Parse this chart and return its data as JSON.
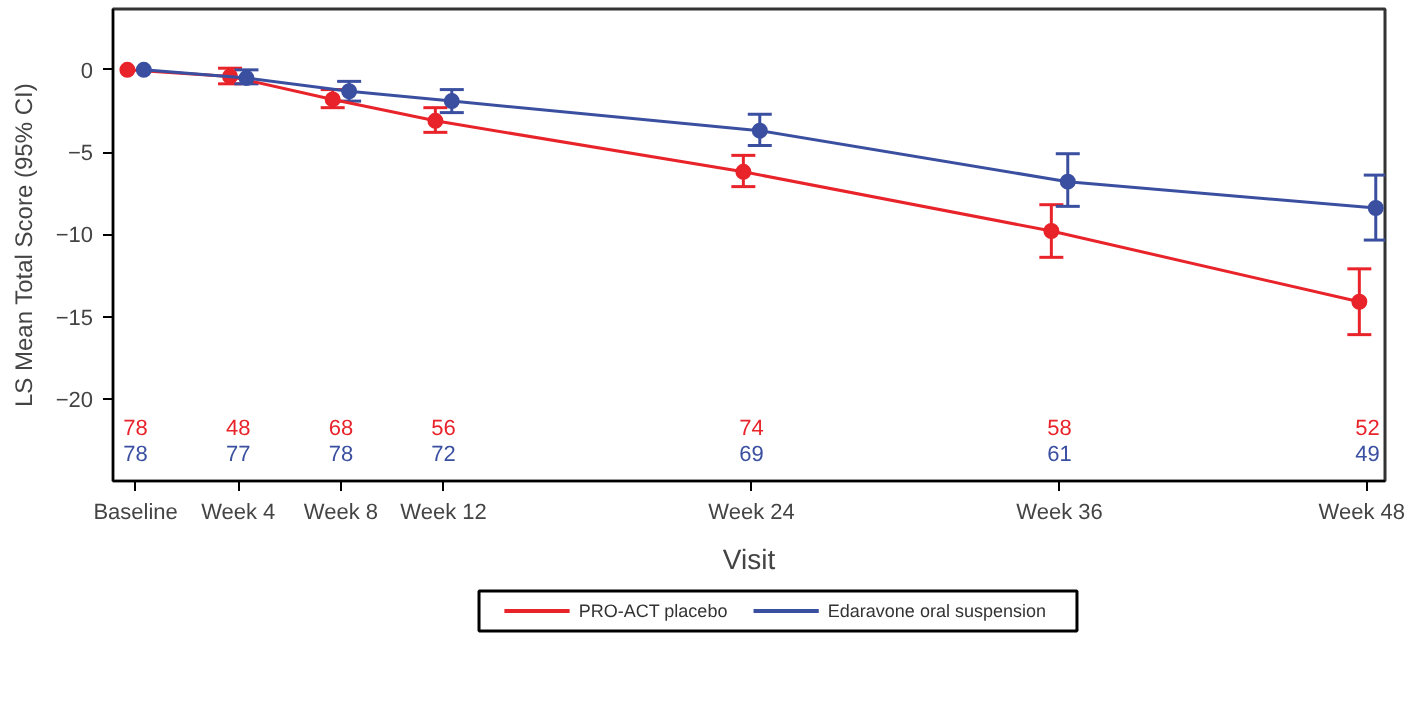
{
  "chart_data": {
    "type": "line",
    "xlabel": "Visit",
    "ylabel": "LS Mean Total Score (95% CI)",
    "categories": [
      "Baseline",
      "Week 4",
      "Week 8",
      "Week 12",
      null,
      null,
      "Week 24",
      null,
      null,
      "Week 36",
      null,
      null,
      "Week 48"
    ],
    "ylim": [
      -25.0,
      3.7
    ],
    "yticks": [
      0,
      -5,
      -10,
      -15,
      -20
    ],
    "marker": "circle",
    "legend": "bottom",
    "series": [
      {
        "name": "PRO-ACT placebo",
        "color": "#e8232a",
        "values": [
          0,
          -0.4,
          -1.8,
          -3.1,
          null,
          null,
          -6.2,
          null,
          null,
          -9.8,
          null,
          null,
          -14.1
        ],
        "errors": [
          null,
          [
            -0.85,
            0.1
          ],
          [
            -2.3,
            -1.2
          ],
          [
            -3.8,
            -2.3
          ],
          null,
          null,
          [
            -7.1,
            -5.2
          ],
          null,
          null,
          [
            -11.4,
            -8.2
          ],
          null,
          null,
          [
            -16.1,
            -12.1
          ]
        ]
      },
      {
        "name": "Edaravone oral suspension",
        "color": "#3a4fa0",
        "values": [
          0,
          -0.5,
          -1.3,
          -1.9,
          null,
          null,
          -3.7,
          null,
          null,
          -6.8,
          null,
          null,
          -8.4
        ],
        "errors": [
          null,
          [
            -0.85,
            0.0
          ],
          [
            -1.9,
            -0.7
          ],
          [
            -2.6,
            -1.2
          ],
          null,
          null,
          [
            -4.6,
            -2.7
          ],
          null,
          null,
          [
            -8.3,
            -5.1
          ],
          null,
          null,
          [
            -10.35,
            -6.4
          ]
        ]
      }
    ],
    "annotations": [
      "78",
      "48",
      "68",
      "56",
      "74",
      "58",
      "52",
      "78",
      "77",
      "78",
      "72",
      "69",
      "61",
      "49"
    ]
  }
}
